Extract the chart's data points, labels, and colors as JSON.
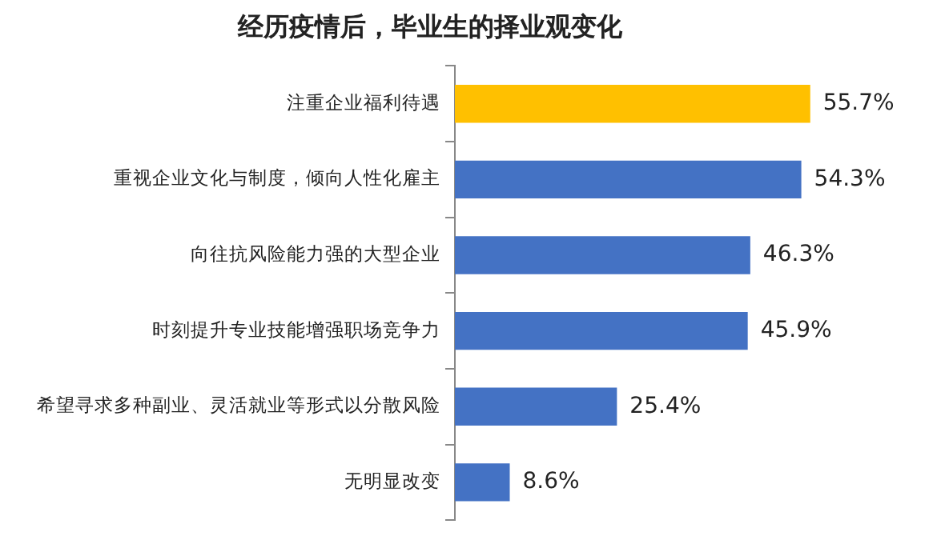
{
  "chart_data": {
    "type": "bar",
    "orientation": "horizontal",
    "title": "经历疫情后，毕业生的择业观变化",
    "categories": [
      "注重企业福利待遇",
      "重视企业文化与制度，倾向人性化雇主",
      "向往抗风险能力强的大型企业",
      "时刻提升专业技能增强职场竞争力",
      "希望寻求多种副业、灵活就业等形式以分散风险",
      "无明显改变"
    ],
    "values": [
      55.7,
      54.3,
      46.3,
      45.9,
      25.4,
      8.6
    ],
    "colors": [
      "#ffc000",
      "#4472c4",
      "#4472c4",
      "#4472c4",
      "#4472c4",
      "#4472c4"
    ],
    "value_labels": [
      "55.7%",
      "54.3%",
      "46.3%",
      "45.9%",
      "25.4%",
      "8.6%"
    ]
  }
}
